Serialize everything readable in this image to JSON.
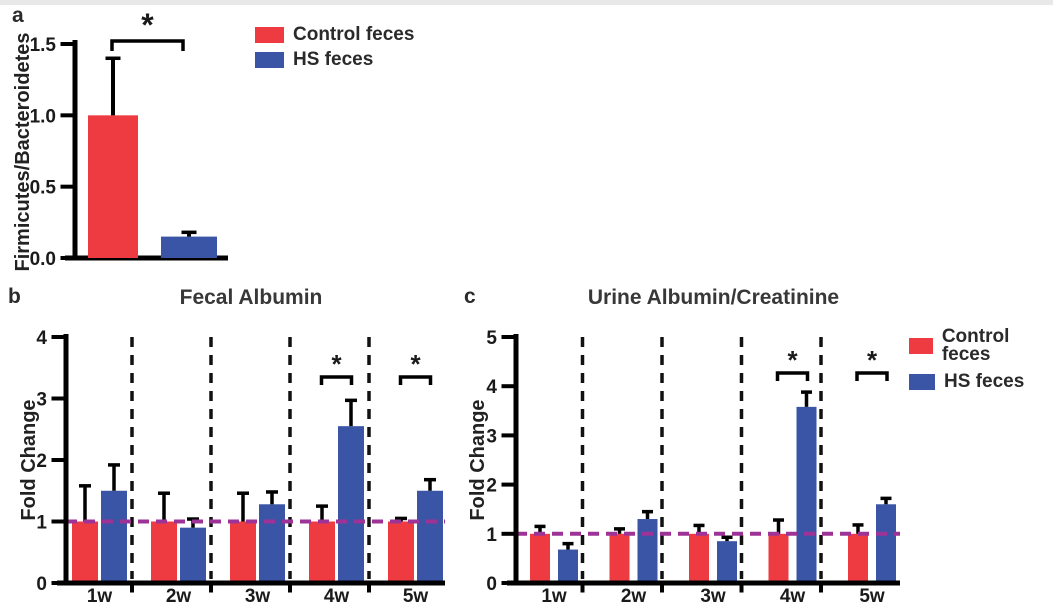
{
  "page": {
    "top_border_color": "#e8e8e8",
    "background": "#ffffff"
  },
  "colors": {
    "control": "#EE3B41",
    "hs": "#3A55A6",
    "reference": "#9E3397",
    "axis": "#000000"
  },
  "legend": {
    "items": [
      {
        "label": "Control feces",
        "color_key": "control"
      },
      {
        "label": "HS feces",
        "color_key": "hs"
      }
    ]
  },
  "panels": {
    "a": {
      "letter": "a"
    },
    "b": {
      "letter": "b"
    },
    "c": {
      "letter": "c"
    }
  },
  "chart_data": [
    {
      "id": "a",
      "type": "bar",
      "title": "",
      "ylabel": "Firmicutes/Bacteroidetes",
      "categories": [
        "Control feces",
        "HS feces"
      ],
      "series": [
        {
          "name": "Control feces",
          "color_key": "control",
          "values": [
            1.0
          ],
          "errors_upper": [
            0.4
          ]
        },
        {
          "name": "HS feces",
          "color_key": "hs",
          "values": [
            0.15
          ],
          "errors_upper": [
            0.03
          ]
        }
      ],
      "ylim": [
        0,
        1.5
      ],
      "yticks": [
        0,
        0.5,
        1.0,
        1.5
      ],
      "ytick_labels": [
        "0.0",
        "0.5",
        "1.0",
        "1.5"
      ],
      "grid": false,
      "legend_position": "right-of-plot",
      "significance": [
        {
          "label": "*",
          "between": [
            "Control feces",
            "HS feces"
          ]
        }
      ]
    },
    {
      "id": "b",
      "type": "bar",
      "title": "Fecal Albumin",
      "ylabel": "Fold Change",
      "categories": [
        "1w",
        "2w",
        "3w",
        "4w",
        "5w"
      ],
      "series": [
        {
          "name": "Control feces",
          "color_key": "control",
          "values": [
            1.0,
            1.0,
            1.0,
            1.0,
            1.0
          ],
          "errors_upper": [
            0.58,
            0.46,
            0.46,
            0.25,
            0.05
          ]
        },
        {
          "name": "HS feces",
          "color_key": "hs",
          "values": [
            1.5,
            0.9,
            1.28,
            2.55,
            1.5
          ],
          "errors_upper": [
            0.42,
            0.14,
            0.2,
            0.42,
            0.18
          ]
        }
      ],
      "ylim": [
        0,
        4
      ],
      "yticks": [
        0,
        1,
        2,
        3,
        4
      ],
      "ytick_labels": [
        "0",
        "1",
        "2",
        "3",
        "4"
      ],
      "reference_line_y": 1,
      "group_separators": true,
      "grid": false,
      "significance": [
        {
          "label": "*",
          "category": "4w"
        },
        {
          "label": "*",
          "category": "5w"
        }
      ]
    },
    {
      "id": "c",
      "type": "bar",
      "title": "Urine Albumin/Creatinine",
      "ylabel": "Fold Change",
      "categories": [
        "1w",
        "2w",
        "3w",
        "4w",
        "5w"
      ],
      "series": [
        {
          "name": "Control feces",
          "color_key": "control",
          "values": [
            1.0,
            1.0,
            1.0,
            1.0,
            1.0
          ],
          "errors_upper": [
            0.15,
            0.1,
            0.17,
            0.28,
            0.18
          ]
        },
        {
          "name": "HS feces",
          "color_key": "hs",
          "values": [
            0.68,
            1.3,
            0.85,
            3.58,
            1.6
          ],
          "errors_upper": [
            0.12,
            0.15,
            0.08,
            0.3,
            0.12
          ]
        }
      ],
      "ylim": [
        0,
        5
      ],
      "yticks": [
        0,
        1,
        2,
        3,
        4,
        5
      ],
      "ytick_labels": [
        "0",
        "1",
        "2",
        "3",
        "4",
        "5"
      ],
      "reference_line_y": 1,
      "group_separators": true,
      "grid": false,
      "legend_position": "right-of-plot",
      "significance": [
        {
          "label": "*",
          "category": "4w"
        },
        {
          "label": "*",
          "category": "5w"
        }
      ]
    }
  ]
}
